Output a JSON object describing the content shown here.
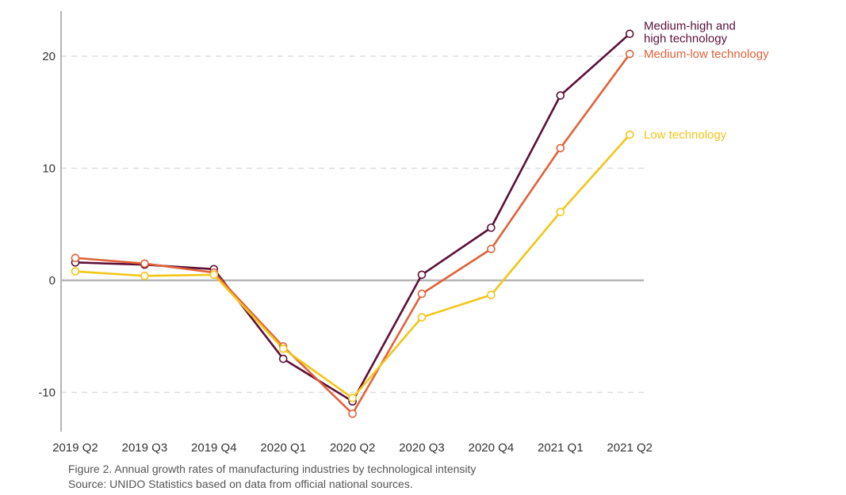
{
  "chart_data": {
    "type": "line",
    "categories": [
      "2019 Q2",
      "2019 Q3",
      "2019 Q4",
      "2020 Q1",
      "2020 Q2",
      "2020 Q3",
      "2020 Q4",
      "2021 Q1",
      "2021 Q2"
    ],
    "y_ticks": [
      "20",
      "10",
      "0",
      "-10"
    ],
    "ylim": [
      -13.5,
      24
    ],
    "grid": "horizontal dashed",
    "legend": "labels at line ends",
    "series": [
      {
        "name_lines": [
          "Medium-high and",
          "high technology"
        ],
        "color": "#5c1038",
        "values": [
          1.6,
          1.4,
          1.0,
          -7.0,
          -10.8,
          0.5,
          4.7,
          16.5,
          22.0
        ]
      },
      {
        "name_lines": [
          "Medium-low technology"
        ],
        "color": "#e0623a",
        "values": [
          2.0,
          1.5,
          0.7,
          -5.9,
          -11.9,
          -1.2,
          2.8,
          11.8,
          20.2
        ]
      },
      {
        "name_lines": [
          "Low technology"
        ],
        "color": "#f2c617",
        "values": [
          0.8,
          0.4,
          0.5,
          -6.1,
          -10.5,
          -3.3,
          -1.3,
          6.1,
          13.0
        ]
      }
    ]
  },
  "caption": {
    "title": "Figure 2. Annual growth rates of manufacturing industries by technological intensity",
    "source": "Source: UNIDO Statistics based on data from official national sources."
  }
}
